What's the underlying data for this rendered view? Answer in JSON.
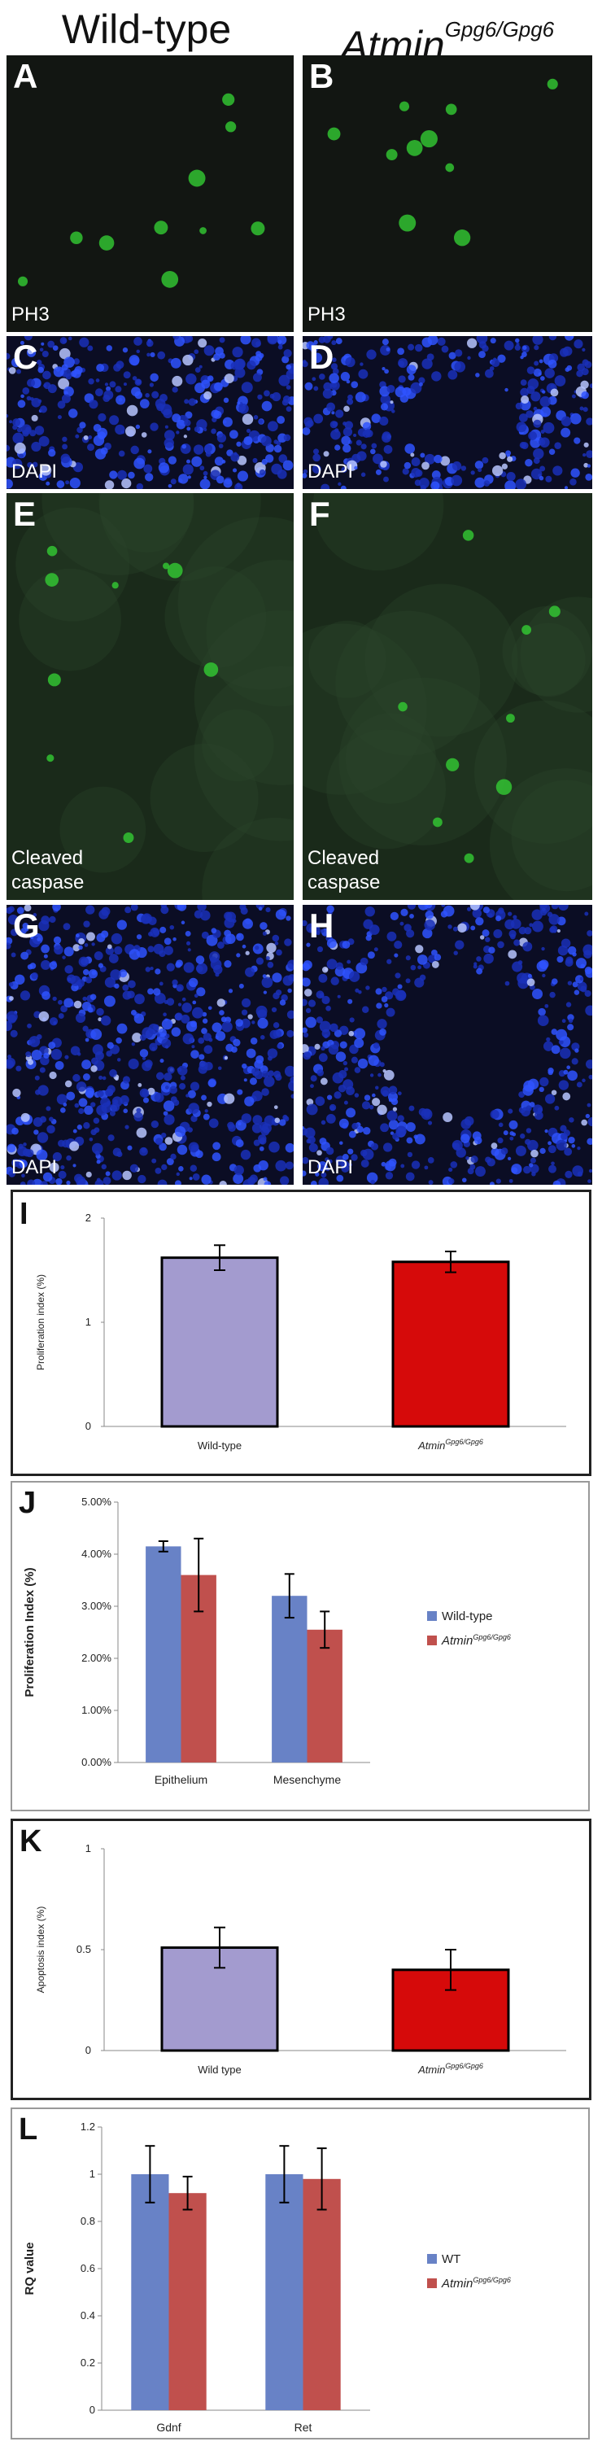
{
  "headers": {
    "left": "Wild-type",
    "right_main": "Atmin",
    "right_sup": "Gpg6/Gpg6"
  },
  "panels": [
    {
      "label": "A",
      "stain": [
        "PH3"
      ],
      "kind": "green"
    },
    {
      "label": "B",
      "stain": [
        "PH3"
      ],
      "kind": "green"
    },
    {
      "label": "C",
      "stain": [
        "DAPI"
      ],
      "kind": "blue"
    },
    {
      "label": "D",
      "stain": [
        "DAPI"
      ],
      "kind": "blue"
    },
    {
      "label": "E",
      "stain": [
        "Cleaved",
        "caspase"
      ],
      "kind": "green"
    },
    {
      "label": "F",
      "stain": [
        "Cleaved",
        "caspase"
      ],
      "kind": "green"
    },
    {
      "label": "G",
      "stain": [
        "DAPI"
      ],
      "kind": "blue"
    },
    {
      "label": "H",
      "stain": [
        "DAPI"
      ],
      "kind": "blue"
    }
  ],
  "colors": {
    "lavender": "#a39bcf",
    "red": "#d60a0a",
    "blue_series": "#6882c6",
    "red_series": "#c0504d",
    "micro_bg": "#111111",
    "dapi": "#1a3ccf",
    "gfp": "#33cc33"
  },
  "chart_data": [
    {
      "panel": "I",
      "type": "bar",
      "categories": [
        "Wild-type",
        "Atmin Gpg6/Gpg6"
      ],
      "cat_main": [
        "Wild-type",
        "Atmin"
      ],
      "cat_sup": [
        "",
        "Gpg6/Gpg6"
      ],
      "values": [
        1.62,
        1.58
      ],
      "errors": [
        0.12,
        0.1
      ],
      "ylabel": "Proliferation index (%)",
      "yticks": [
        "0",
        "1",
        "2"
      ],
      "ylim": [
        0,
        2
      ]
    },
    {
      "panel": "J",
      "type": "bar",
      "categories": [
        "Epithelium",
        "Mesenchyme"
      ],
      "series": [
        {
          "name": "Wild-type",
          "values": [
            4.15,
            3.2
          ],
          "errors": [
            0.1,
            0.42
          ]
        },
        {
          "name": "Atmin Gpg6/Gpg6",
          "name_main": "Atmin",
          "name_sup": "Gpg6/Gpg6",
          "values": [
            3.6,
            2.55
          ],
          "errors": [
            0.7,
            0.35
          ]
        }
      ],
      "ylabel": "Proliferation Index (%)",
      "yticks": [
        "0.00%",
        "1.00%",
        "2.00%",
        "3.00%",
        "4.00%",
        "5.00%"
      ],
      "ylim": [
        0,
        5
      ]
    },
    {
      "panel": "K",
      "type": "bar",
      "categories": [
        "Wild type",
        "Atmin Gpg6/Gpg6"
      ],
      "cat_main": [
        "Wild type",
        "Atmin"
      ],
      "cat_sup": [
        "",
        "Gpg6/Gpg6"
      ],
      "values": [
        0.51,
        0.4
      ],
      "errors": [
        0.1,
        0.1
      ],
      "ylabel": "Apoptosis index (%)",
      "yticks": [
        "0",
        "0.5",
        "1"
      ],
      "ylim": [
        0,
        1
      ]
    },
    {
      "panel": "L",
      "type": "bar",
      "categories": [
        "Gdnf",
        "Ret"
      ],
      "series": [
        {
          "name": "WT",
          "values": [
            1.0,
            1.0
          ],
          "errors": [
            0.12,
            0.12
          ]
        },
        {
          "name": "Atmin Gpg6/Gpg6",
          "name_main": "Atmin",
          "name_sup": "Gpg6/Gpg6",
          "values": [
            0.92,
            0.98
          ],
          "errors": [
            0.07,
            0.13
          ]
        }
      ],
      "ylabel": "RQ value",
      "yticks": [
        "0",
        "0.2",
        "0.4",
        "0.6",
        "0.8",
        "1",
        "1.2"
      ],
      "ylim": [
        0,
        1.2
      ]
    }
  ]
}
